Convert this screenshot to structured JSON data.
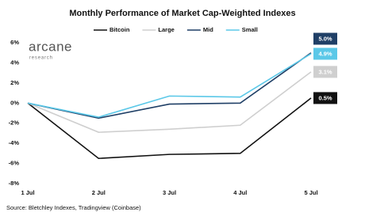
{
  "logo": {
    "name": "arcane",
    "tagline": "research"
  },
  "chart_data": {
    "type": "line",
    "title": "Monthly Performance of Market Cap-Weighted Indexes",
    "source": "Source: Bletchley Indexes, Tradingview (Coinbase)",
    "categories": [
      "1 Jul",
      "2 Jul",
      "3 Jul",
      "4 Jul",
      "5 Jul"
    ],
    "series": [
      {
        "name": "Bitcoin",
        "color": "#111111",
        "values": [
          0,
          -5.5,
          -5.1,
          -5.0,
          0.5
        ],
        "value_labels": [
          null,
          null,
          null,
          null,
          "0.5%"
        ]
      },
      {
        "name": "Large",
        "color": "#cfcfcf",
        "values": [
          0,
          -2.9,
          -2.6,
          -2.2,
          3.1
        ],
        "value_labels": [
          null,
          null,
          null,
          null,
          "3.1%"
        ]
      },
      {
        "name": "Mid",
        "color": "#1f3f66",
        "values": [
          0,
          -1.5,
          -0.1,
          0,
          5.0
        ],
        "value_labels": [
          null,
          null,
          null,
          null,
          "5.0%"
        ]
      },
      {
        "name": "Small",
        "color": "#5bc8e8",
        "values": [
          0,
          -1.4,
          0.7,
          0.6,
          4.9
        ],
        "value_labels": [
          null,
          null,
          null,
          null,
          "4.9%"
        ]
      }
    ],
    "ylim": [
      -8,
      6
    ],
    "yticks": [
      {
        "value": -8,
        "label": "-8%"
      },
      {
        "value": -6,
        "label": "-6%"
      },
      {
        "value": -4,
        "label": "-4%"
      },
      {
        "value": -2,
        "label": "-2%"
      },
      {
        "value": 0,
        "label": "0%"
      },
      {
        "value": 2,
        "label": "2%"
      },
      {
        "value": 4,
        "label": "4%"
      },
      {
        "value": 6,
        "label": "6%"
      }
    ],
    "grid": false
  }
}
